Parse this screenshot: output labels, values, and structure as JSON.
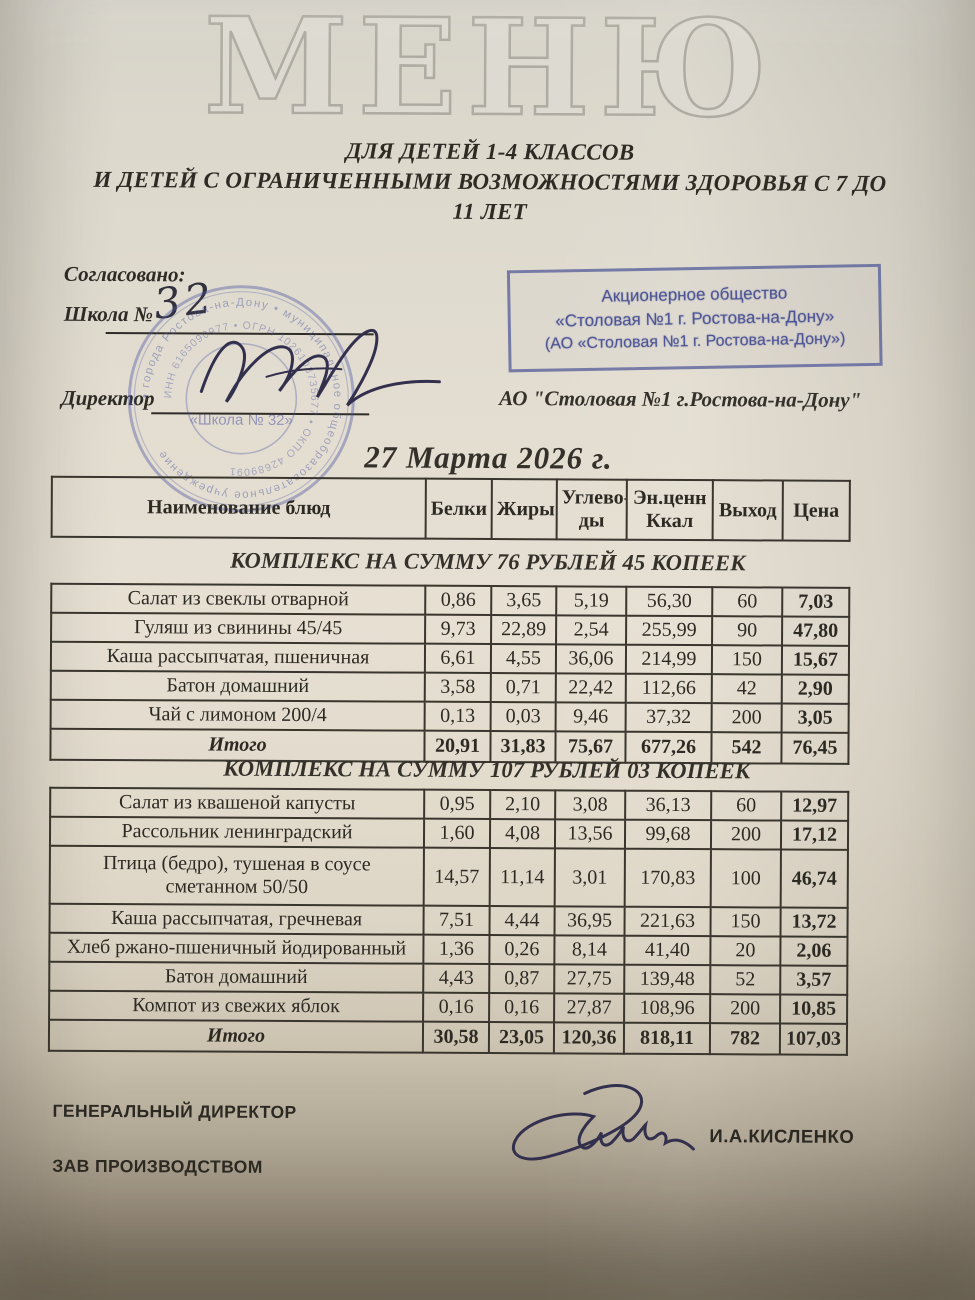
{
  "doc": {
    "title": "МЕНЮ",
    "subtitle_line1": "ДЛЯ ДЕТЕЙ 1-4 КЛАССОВ",
    "subtitle_line2": "И ДЕТЕЙ С ОГРАНИЧЕННЫМИ ВОЗМОЖНОСТЯМИ ЗДОРОВЬЯ С 7 ДО",
    "subtitle_line3": "11 ЛЕТ",
    "date": "27 Марта 2026 г."
  },
  "approval": {
    "agreed_label": "Согласовано:",
    "school_label": "Школа №",
    "school_number_handwritten": "32",
    "director_label": "Директор",
    "org_name": "АО \"Столовая №1 г.Ростова-на-Дону\""
  },
  "rect_stamp": {
    "line1": "Акционерное общество",
    "line2": "«Столовая №1 г. Ростова-на-Дону»",
    "line3": "(АО «Столовая №1 г. Ростова-на-Дону»)"
  },
  "round_stamp": {
    "outer_ring_text": "• города Ростова-на-Дону • муниципальное общеобразовательное учреждение",
    "inner_ring_text": "ИНН 6165090977 • ОГРН 1026103735677 • ОКПО 42689091",
    "center_text": "«Школа № 32»"
  },
  "table_header": {
    "name": "Наименование блюд",
    "protein": "Белки",
    "fat": "Жиры",
    "carbs": "Углево-ды",
    "kcal": "Эн.ценн Ккал",
    "weight": "Выход",
    "price": "Цена"
  },
  "section1": {
    "title": "КОМПЛЕКС НА СУММУ 76 РУБЛЕЙ 45 КОПЕЕК",
    "rows": [
      {
        "cells": [
          "Салат из свеклы отварной",
          "0,86",
          "3,65",
          "5,19",
          "56,30",
          "60",
          "7,03"
        ]
      },
      {
        "cells": [
          "Гуляш из свинины 45/45",
          "9,73",
          "22,89",
          "2,54",
          "255,99",
          "90",
          "47,80"
        ]
      },
      {
        "cells": [
          "Каша рассыпчатая, пшеничная",
          "6,61",
          "4,55",
          "36,06",
          "214,99",
          "150",
          "15,67"
        ]
      },
      {
        "cells": [
          "Батон домашний",
          "3,58",
          "0,71",
          "22,42",
          "112,66",
          "42",
          "2,90"
        ]
      },
      {
        "cells": [
          "Чай с лимоном 200/4",
          "0,13",
          "0,03",
          "9,46",
          "37,32",
          "200",
          "3,05"
        ]
      },
      {
        "cells": [
          "Итого",
          "20,91",
          "31,83",
          "75,67",
          "677,26",
          "542",
          "76,45"
        ],
        "total": true
      }
    ]
  },
  "section2": {
    "title": "КОМПЛЕКС НА СУММУ 107 РУБЛЕЙ 03 КОПЕЕК",
    "rows": [
      {
        "cells": [
          "Салат из квашеной капусты",
          "0,95",
          "2,10",
          "3,08",
          "36,13",
          "60",
          "12,97"
        ]
      },
      {
        "cells": [
          "Рассольник ленинградский",
          "1,60",
          "4,08",
          "13,56",
          "99,68",
          "200",
          "17,12"
        ]
      },
      {
        "cells": [
          "Птица (бедро), тушеная в соусе сметанном 50/50",
          "14,57",
          "11,14",
          "3,01",
          "170,83",
          "100",
          "46,74"
        ],
        "tall": true
      },
      {
        "cells": [
          "Каша рассыпчатая, гречневая",
          "7,51",
          "4,44",
          "36,95",
          "221,63",
          "150",
          "13,72"
        ]
      },
      {
        "cells": [
          "Хлеб ржано-пшеничный йодированный",
          "1,36",
          "0,26",
          "8,14",
          "41,40",
          "20",
          "2,06"
        ]
      },
      {
        "cells": [
          "Батон домашний",
          "4,43",
          "0,87",
          "27,75",
          "139,48",
          "52",
          "3,57"
        ]
      },
      {
        "cells": [
          "Компот из свежих яблок",
          "0,16",
          "0,16",
          "27,87",
          "108,96",
          "200",
          "10,85"
        ]
      },
      {
        "cells": [
          "Итого",
          "30,58",
          "23,05",
          "120,36",
          "818,11",
          "782",
          "107,03"
        ],
        "total": true
      }
    ]
  },
  "footer": {
    "role1": "ГЕНЕРАЛЬНЫЙ ДИРЕКТОР",
    "role2": "ЗАВ ПРОИЗВОДСТВОМ",
    "signer_name": "И.А.КИСЛЕНКО"
  },
  "colors": {
    "stamp_blue": "#3e4891",
    "ink": "#34312b",
    "paper_light": "#e6dfd2",
    "paper_dark_bottom": "#79705f"
  }
}
